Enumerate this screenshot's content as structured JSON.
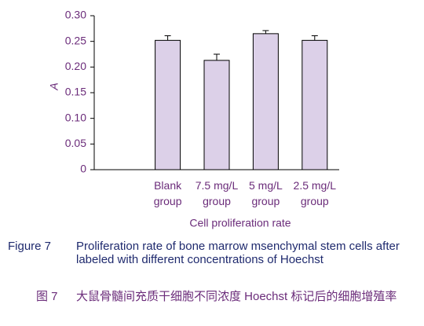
{
  "chart_data": {
    "type": "bar",
    "ylabel": "A",
    "xlabel": "Cell proliferation rate",
    "categories": [
      null,
      "Blank group",
      "7.5 mg/L group",
      "5 mg/L group",
      "2.5 mg/L group"
    ],
    "values": [
      null,
      0.252,
      0.213,
      0.265,
      0.252
    ],
    "errors": [
      null,
      0.009,
      0.012,
      0.006,
      0.009
    ],
    "color": "#dcd0e8",
    "ylim": [
      0,
      0.3
    ],
    "yticks": [
      0,
      0.05,
      {
        "value": 0.1,
        "label": "0.10"
      },
      0.15,
      {
        "value": 0.2,
        "label": "0.20"
      },
      0.25,
      {
        "value": 0.3,
        "label": "0.30"
      }
    ],
    "grid": false
  },
  "caption": {
    "en_label": "Figure 7",
    "en_text": "Proliferation rate of bone marrow msenchymal stem cells after labeled with different concentrations of Hoechst",
    "zh_label": "图 7",
    "zh_text": "大鼠骨髓间充质干细胞不同浓度 Hoechst 标记后的细胞增殖率"
  }
}
